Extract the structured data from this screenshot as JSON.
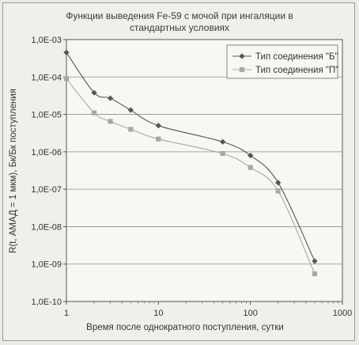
{
  "chart_data": {
    "type": "line",
    "title": "Функции выведения Fe-59 с мочой при ингаляции в",
    "subtitle": "стандартных условиях",
    "xlabel": "Время после однократного поступления, сутки",
    "ylabel": "R(t, АМАД = 1 мкм), Бк/Бк поступления",
    "x_scale": "log",
    "y_scale": "log",
    "xlim": [
      1,
      1000
    ],
    "ylim": [
      1e-10,
      0.001
    ],
    "x_ticks": [
      "1",
      "10",
      "100",
      "1000"
    ],
    "y_ticks": [
      "1,0E-03",
      "1,0E-04",
      "1,0E-05",
      "1,0E-06",
      "1,0E-07",
      "1,0E-08",
      "1,0E-09",
      "1,0E-10"
    ],
    "grid": "horizontal",
    "legend_position": "top-right",
    "x": [
      1,
      2,
      3,
      5,
      10,
      50,
      100,
      200,
      500
    ],
    "series": [
      {
        "name": "Тип соединения \"Б\"",
        "color": "#555555",
        "marker": "diamond",
        "values": [
          0.00045,
          3.8e-05,
          2.7e-05,
          1.3e-05,
          5e-06,
          1.85e-06,
          8e-07,
          1.5e-07,
          1.2e-09
        ]
      },
      {
        "name": "Тип соединения \"П\"",
        "color": "#a8a8a8",
        "marker": "square",
        "values": [
          9e-05,
          1.1e-05,
          6.5e-06,
          4e-06,
          2.2e-06,
          9e-07,
          3.8e-07,
          9e-08,
          5.5e-10
        ]
      }
    ]
  }
}
